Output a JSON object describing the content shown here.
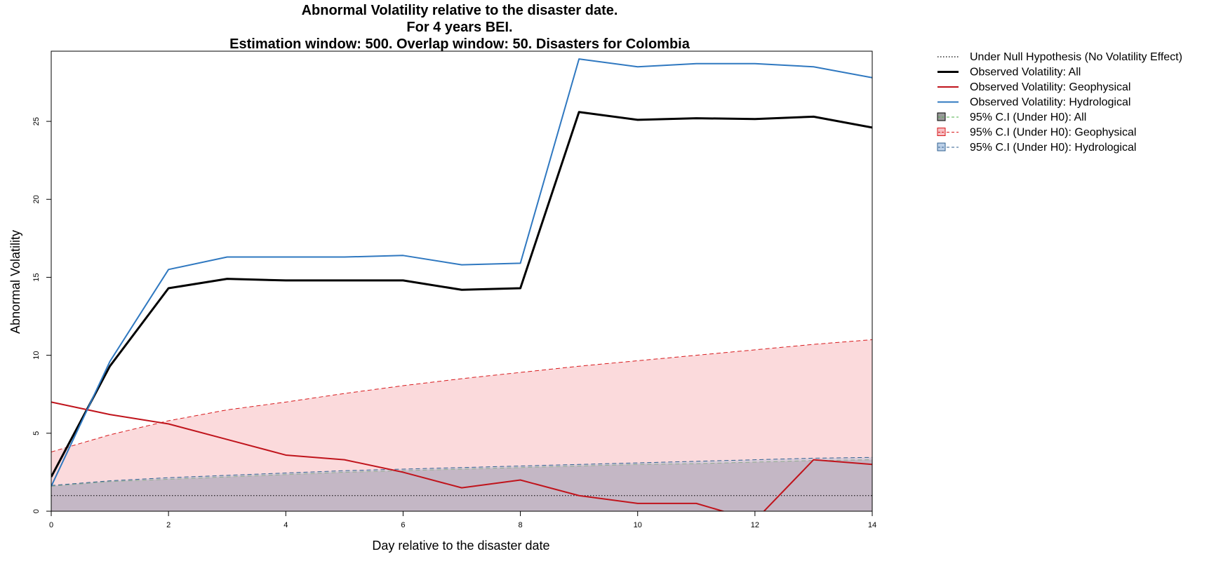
{
  "chart_data": {
    "type": "line",
    "title": [
      "Abnormal Volatility relative to the disaster date.",
      "For 4 years BEI.",
      "Estimation window: 500. Overlap window: 50. Disasters for Colombia"
    ],
    "xlabel": "Day relative to the disaster date",
    "ylabel": "Abnormal Volatility",
    "xlim": [
      0,
      14
    ],
    "ylim": [
      0,
      29.5
    ],
    "xticks": [
      0,
      2,
      4,
      6,
      8,
      10,
      12,
      14
    ],
    "yticks": [
      0,
      5,
      10,
      15,
      20,
      25
    ],
    "legend_position": "top-right-outside",
    "x": [
      0,
      1,
      2,
      3,
      4,
      5,
      6,
      7,
      8,
      9,
      10,
      11,
      12,
      13,
      14
    ],
    "null_hypothesis": {
      "name": "Under Null Hypothesis (No Volatility Effect)",
      "value": 1,
      "color": "#000000"
    },
    "series": [
      {
        "name": "Observed Volatility: All",
        "color": "#000000",
        "width": 3,
        "values": [
          2.2,
          9.3,
          14.3,
          14.9,
          14.8,
          14.8,
          14.8,
          14.2,
          14.3,
          25.6,
          25.1,
          25.2,
          25.15,
          25.3,
          24.6
        ]
      },
      {
        "name": "Observed Volatility: Geophysical",
        "color": "#c0141c",
        "width": 2,
        "values": [
          7.0,
          6.2,
          5.6,
          4.6,
          3.6,
          3.3,
          2.5,
          1.5,
          2.0,
          1.0,
          0.5,
          0.5,
          -0.6,
          3.3,
          3.0
        ]
      },
      {
        "name": "Observed Volatility: Hydrological",
        "color": "#2f78c0",
        "width": 2,
        "values": [
          1.6,
          9.6,
          15.5,
          16.3,
          16.3,
          16.3,
          16.4,
          15.8,
          15.9,
          29.0,
          28.5,
          28.7,
          28.7,
          28.5,
          27.8
        ]
      }
    ],
    "confidence_bands": [
      {
        "name": "95% C.I (Under H0): All",
        "line_color": "#4daf4a",
        "fill": "#555555",
        "fill_opacity": 0.3,
        "upper": [
          1.6,
          1.9,
          2.05,
          2.2,
          2.35,
          2.5,
          2.6,
          2.7,
          2.8,
          2.9,
          3.0,
          3.05,
          3.15,
          3.25,
          3.3
        ]
      },
      {
        "name": "95% C.I (Under H0): Geophysical",
        "line_color": "#d7191c",
        "fill": "#f4a3a8",
        "fill_opacity": 0.4,
        "upper": [
          3.8,
          4.9,
          5.8,
          6.5,
          7.0,
          7.55,
          8.05,
          8.5,
          8.9,
          9.3,
          9.65,
          10.0,
          10.35,
          10.7,
          11.0
        ]
      },
      {
        "name": "95% C.I (Under H0): Hydrological",
        "line_color": "#2f5f8f",
        "fill": "#8fb0d8",
        "fill_opacity": 0.3,
        "upper": [
          1.65,
          1.95,
          2.15,
          2.3,
          2.45,
          2.6,
          2.7,
          2.8,
          2.9,
          3.0,
          3.1,
          3.2,
          3.3,
          3.4,
          3.45
        ]
      }
    ]
  }
}
